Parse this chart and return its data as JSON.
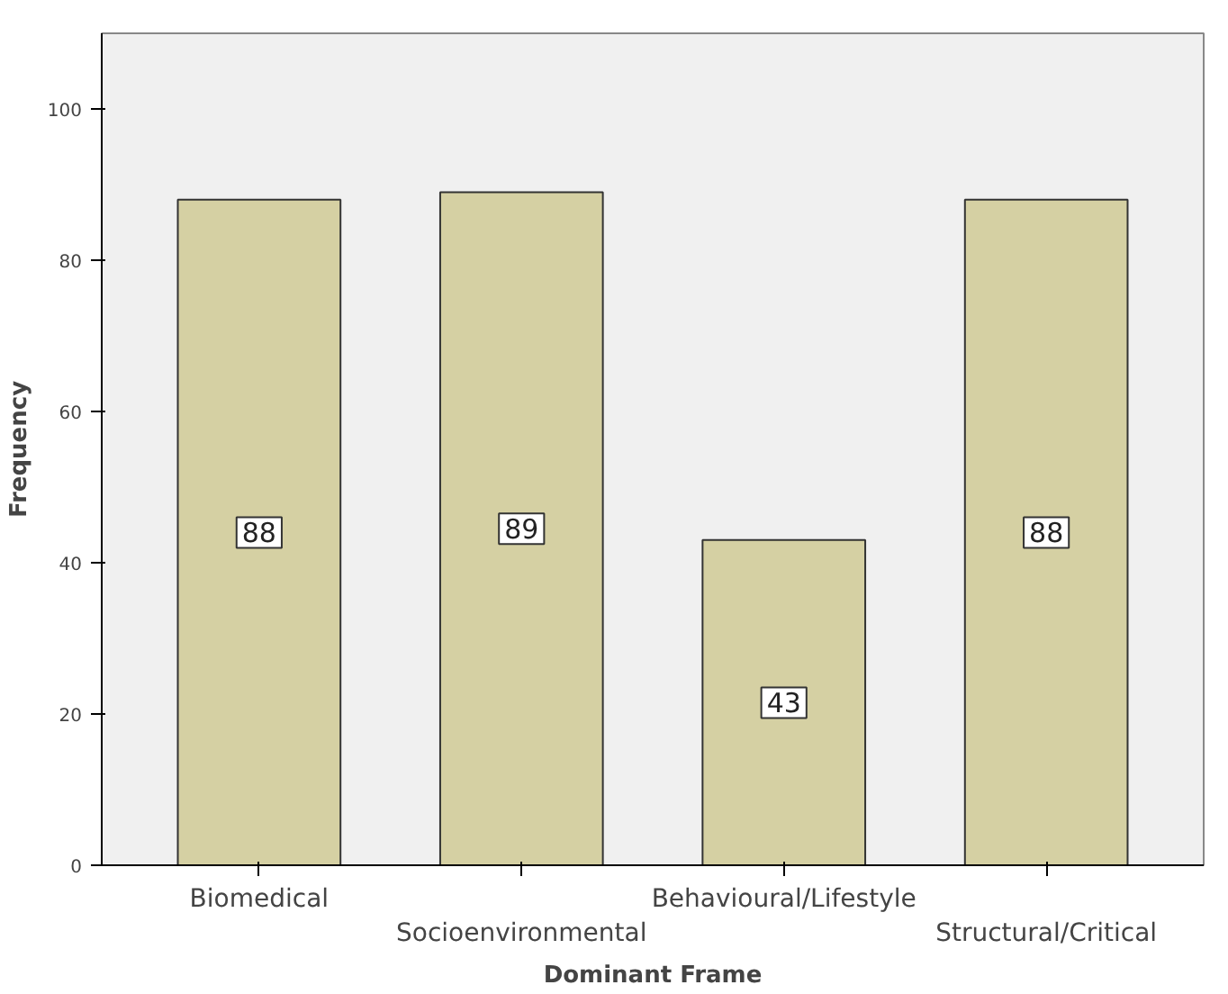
{
  "chart_data": {
    "type": "bar",
    "xlabel": "Dominant Frame",
    "ylabel": "Frequency",
    "categories": [
      "Biomedical",
      "Socioenvironmental",
      "Behavioural/Lifestyle",
      "Structural/Critical"
    ],
    "values": [
      88,
      89,
      43,
      88
    ],
    "color": "#d5d0a3",
    "ylim": [
      0,
      110
    ],
    "yticks": [
      0,
      20,
      40,
      60,
      80,
      100
    ],
    "grid": false,
    "data_labels": true
  }
}
